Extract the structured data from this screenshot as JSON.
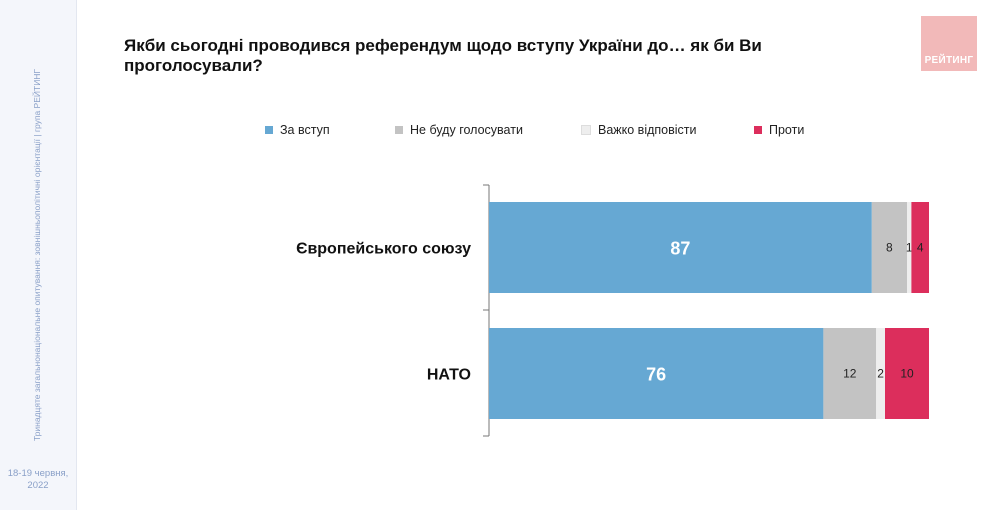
{
  "sidebar": {
    "vertical_text": "Тринадцяте загальнонаціональне опитування: зовнішньополітичні орієнтації | група РЕЙТИНГ",
    "date_line1": "18-19 червня,",
    "date_line2": "2022"
  },
  "logo": {
    "text": "РЕЙТИНГ"
  },
  "chart_data": {
    "type": "bar",
    "orientation": "horizontal",
    "stacked": true,
    "title": "Якби сьогодні проводився референдум щодо вступу України до… як би Ви проголосували?",
    "categories": [
      "Європейського союзу",
      "НАТО"
    ],
    "series": [
      {
        "name": "За вступ",
        "color": "#66a8d3",
        "values": [
          87,
          76
        ],
        "label_color": "#ffffff"
      },
      {
        "name": "Не буду голосувати",
        "color": "#c3c3c3",
        "values": [
          8,
          12
        ],
        "label_color": "#222222"
      },
      {
        "name": "Важко відповісти",
        "color": "#eeeeee",
        "values": [
          1,
          2
        ],
        "label_color": "#222222"
      },
      {
        "name": "Проти",
        "color": "#dc2e5c",
        "values": [
          4,
          10
        ],
        "label_color": "#222222"
      }
    ],
    "xlim": [
      0,
      100
    ],
    "legend_position": "top",
    "grid": false
  }
}
